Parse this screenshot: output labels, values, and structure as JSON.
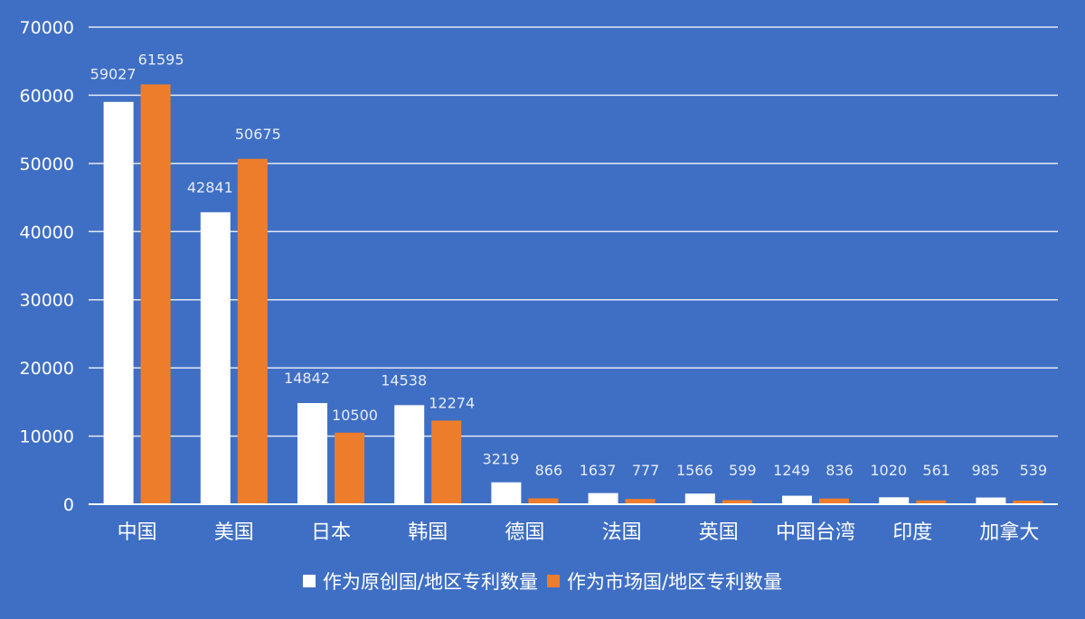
{
  "chart_data": {
    "type": "bar",
    "categories": [
      "中国",
      "美国",
      "日本",
      "韩国",
      "德国",
      "法国",
      "英国",
      "中国台湾",
      "印度",
      "加拿大"
    ],
    "series": [
      {
        "name": "作为原创国/地区专利数量",
        "color": "#ffffff",
        "values": [
          59027,
          42841,
          14842,
          14538,
          3219,
          1637,
          1566,
          1249,
          1020,
          985
        ]
      },
      {
        "name": "作为市场国/地区专利数量",
        "color": "#ee7d2b",
        "values": [
          61595,
          50675,
          10500,
          12274,
          866,
          777,
          599,
          836,
          561,
          539
        ]
      }
    ],
    "yticks": [
      "0",
      "10000",
      "20000",
      "30000",
      "40000",
      "50000",
      "60000",
      "70000"
    ],
    "ylim": [
      0,
      70000
    ],
    "grid": true,
    "legend_position": "bottom",
    "background": "#3f6fc4"
  }
}
